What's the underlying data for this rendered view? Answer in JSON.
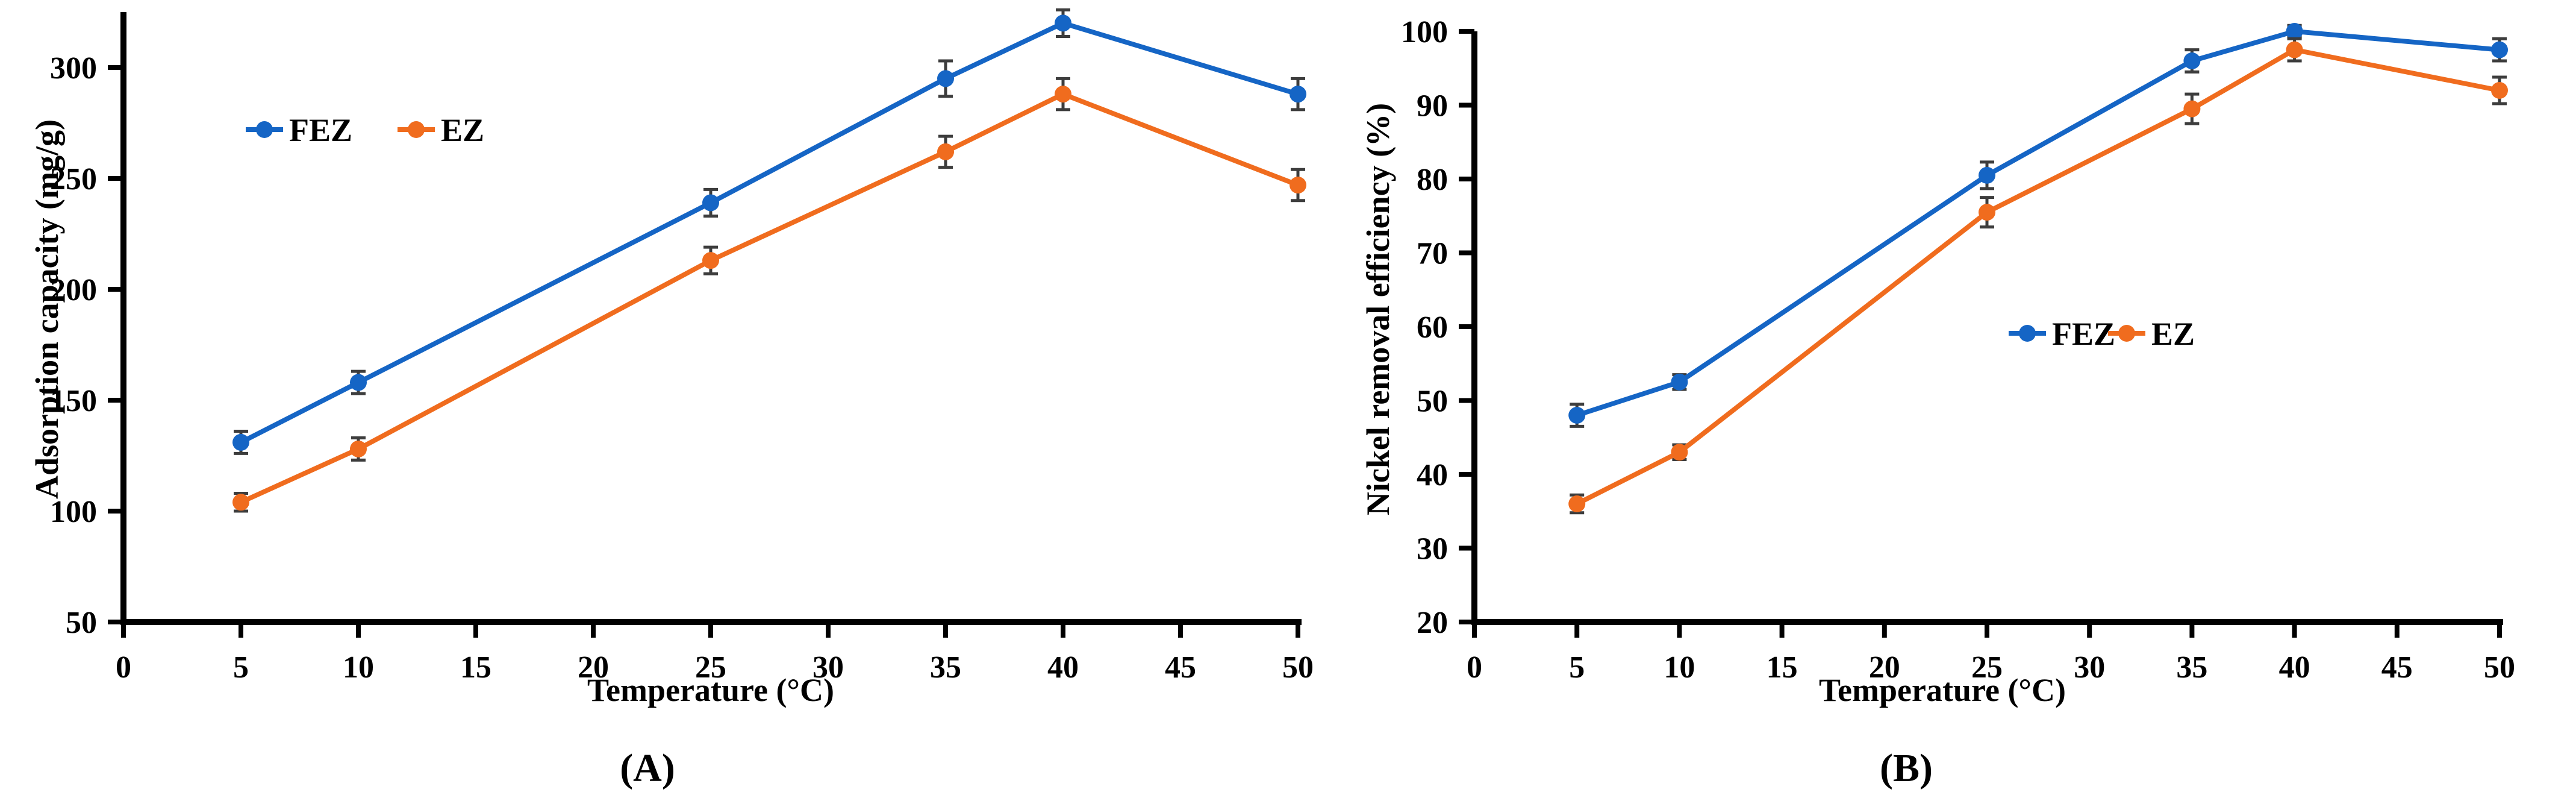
{
  "figure": {
    "background": "#ffffff",
    "captions": [
      "(A)",
      "(B)"
    ]
  },
  "colors": {
    "fez": "#1565C5",
    "ez": "#F06C1E",
    "axis": "#000000",
    "error_bar": "#3d3d3d",
    "text": "#000000"
  },
  "chart_data": [
    {
      "id": "A",
      "type": "line",
      "title": "",
      "xlabel": "Temperature (°C)",
      "ylabel": "Adsorption capacity (mg/g)",
      "caption": "(A)",
      "x": [
        5,
        10,
        25,
        35,
        40,
        50
      ],
      "xticks": [
        0,
        5,
        10,
        15,
        20,
        25,
        30,
        35,
        40,
        45,
        50
      ],
      "xlim": [
        0,
        50
      ],
      "ylim": [
        50,
        325
      ],
      "yticks": [
        50,
        100,
        150,
        200,
        250,
        300
      ],
      "grid": false,
      "legend_position": "inside-upper-left",
      "error_bars": true,
      "series": [
        {
          "name": "FEZ",
          "color_key": "fez",
          "values": [
            131,
            158,
            239,
            295,
            320,
            288
          ],
          "errors": [
            5,
            5,
            6,
            8,
            6,
            7
          ]
        },
        {
          "name": "EZ",
          "color_key": "ez",
          "values": [
            104,
            128,
            213,
            262,
            288,
            247
          ],
          "errors": [
            4,
            5,
            6,
            7,
            7,
            7
          ]
        }
      ]
    },
    {
      "id": "B",
      "type": "line",
      "title": "",
      "xlabel": "Temperature (°C)",
      "ylabel": "Nickel removal efficiency (%)",
      "caption": "(B)",
      "x": [
        5,
        10,
        25,
        35,
        40,
        50
      ],
      "xticks": [
        0,
        5,
        10,
        15,
        20,
        25,
        30,
        35,
        40,
        45,
        50
      ],
      "xlim": [
        0,
        50
      ],
      "ylim": [
        20,
        100
      ],
      "yticks": [
        20,
        30,
        40,
        50,
        60,
        70,
        80,
        90,
        100
      ],
      "grid": false,
      "legend_position": "inside-middle-right",
      "error_bars": true,
      "series": [
        {
          "name": "FEZ",
          "color_key": "fez",
          "values": [
            48,
            52.5,
            80.5,
            96,
            100,
            97.5
          ],
          "errors": [
            1.5,
            1,
            1.8,
            1.5,
            0.8,
            1.5
          ]
        },
        {
          "name": "EZ",
          "color_key": "ez",
          "values": [
            36,
            43,
            75.5,
            89.5,
            97.5,
            92
          ],
          "errors": [
            1.2,
            1,
            2,
            2,
            1.5,
            1.8
          ]
        }
      ]
    }
  ]
}
